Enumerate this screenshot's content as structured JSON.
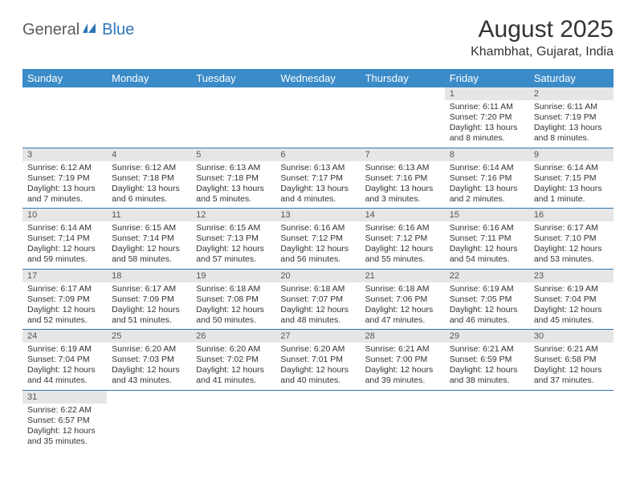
{
  "logo": {
    "part1": "General",
    "part2": "Blue"
  },
  "title": "August 2025",
  "location": "Khambhat, Gujarat, India",
  "colors": {
    "header_bg": "#3b8bc9",
    "header_fg": "#ffffff",
    "daynum_bg": "#e6e6e6",
    "border": "#2e75b6",
    "logo_gray": "#5a5a5a",
    "logo_blue": "#2e75b6"
  },
  "weekdays": [
    "Sunday",
    "Monday",
    "Tuesday",
    "Wednesday",
    "Thursday",
    "Friday",
    "Saturday"
  ],
  "weeks": [
    [
      null,
      null,
      null,
      null,
      null,
      {
        "n": "1",
        "sr": "6:11 AM",
        "ss": "7:20 PM",
        "dl": "13 hours and 8 minutes."
      },
      {
        "n": "2",
        "sr": "6:11 AM",
        "ss": "7:19 PM",
        "dl": "13 hours and 8 minutes."
      }
    ],
    [
      {
        "n": "3",
        "sr": "6:12 AM",
        "ss": "7:19 PM",
        "dl": "13 hours and 7 minutes."
      },
      {
        "n": "4",
        "sr": "6:12 AM",
        "ss": "7:18 PM",
        "dl": "13 hours and 6 minutes."
      },
      {
        "n": "5",
        "sr": "6:13 AM",
        "ss": "7:18 PM",
        "dl": "13 hours and 5 minutes."
      },
      {
        "n": "6",
        "sr": "6:13 AM",
        "ss": "7:17 PM",
        "dl": "13 hours and 4 minutes."
      },
      {
        "n": "7",
        "sr": "6:13 AM",
        "ss": "7:16 PM",
        "dl": "13 hours and 3 minutes."
      },
      {
        "n": "8",
        "sr": "6:14 AM",
        "ss": "7:16 PM",
        "dl": "13 hours and 2 minutes."
      },
      {
        "n": "9",
        "sr": "6:14 AM",
        "ss": "7:15 PM",
        "dl": "13 hours and 1 minute."
      }
    ],
    [
      {
        "n": "10",
        "sr": "6:14 AM",
        "ss": "7:14 PM",
        "dl": "12 hours and 59 minutes."
      },
      {
        "n": "11",
        "sr": "6:15 AM",
        "ss": "7:14 PM",
        "dl": "12 hours and 58 minutes."
      },
      {
        "n": "12",
        "sr": "6:15 AM",
        "ss": "7:13 PM",
        "dl": "12 hours and 57 minutes."
      },
      {
        "n": "13",
        "sr": "6:16 AM",
        "ss": "7:12 PM",
        "dl": "12 hours and 56 minutes."
      },
      {
        "n": "14",
        "sr": "6:16 AM",
        "ss": "7:12 PM",
        "dl": "12 hours and 55 minutes."
      },
      {
        "n": "15",
        "sr": "6:16 AM",
        "ss": "7:11 PM",
        "dl": "12 hours and 54 minutes."
      },
      {
        "n": "16",
        "sr": "6:17 AM",
        "ss": "7:10 PM",
        "dl": "12 hours and 53 minutes."
      }
    ],
    [
      {
        "n": "17",
        "sr": "6:17 AM",
        "ss": "7:09 PM",
        "dl": "12 hours and 52 minutes."
      },
      {
        "n": "18",
        "sr": "6:17 AM",
        "ss": "7:09 PM",
        "dl": "12 hours and 51 minutes."
      },
      {
        "n": "19",
        "sr": "6:18 AM",
        "ss": "7:08 PM",
        "dl": "12 hours and 50 minutes."
      },
      {
        "n": "20",
        "sr": "6:18 AM",
        "ss": "7:07 PM",
        "dl": "12 hours and 48 minutes."
      },
      {
        "n": "21",
        "sr": "6:18 AM",
        "ss": "7:06 PM",
        "dl": "12 hours and 47 minutes."
      },
      {
        "n": "22",
        "sr": "6:19 AM",
        "ss": "7:05 PM",
        "dl": "12 hours and 46 minutes."
      },
      {
        "n": "23",
        "sr": "6:19 AM",
        "ss": "7:04 PM",
        "dl": "12 hours and 45 minutes."
      }
    ],
    [
      {
        "n": "24",
        "sr": "6:19 AM",
        "ss": "7:04 PM",
        "dl": "12 hours and 44 minutes."
      },
      {
        "n": "25",
        "sr": "6:20 AM",
        "ss": "7:03 PM",
        "dl": "12 hours and 43 minutes."
      },
      {
        "n": "26",
        "sr": "6:20 AM",
        "ss": "7:02 PM",
        "dl": "12 hours and 41 minutes."
      },
      {
        "n": "27",
        "sr": "6:20 AM",
        "ss": "7:01 PM",
        "dl": "12 hours and 40 minutes."
      },
      {
        "n": "28",
        "sr": "6:21 AM",
        "ss": "7:00 PM",
        "dl": "12 hours and 39 minutes."
      },
      {
        "n": "29",
        "sr": "6:21 AM",
        "ss": "6:59 PM",
        "dl": "12 hours and 38 minutes."
      },
      {
        "n": "30",
        "sr": "6:21 AM",
        "ss": "6:58 PM",
        "dl": "12 hours and 37 minutes."
      }
    ],
    [
      {
        "n": "31",
        "sr": "6:22 AM",
        "ss": "6:57 PM",
        "dl": "12 hours and 35 minutes."
      },
      null,
      null,
      null,
      null,
      null,
      null
    ]
  ],
  "labels": {
    "sunrise": "Sunrise:",
    "sunset": "Sunset:",
    "daylight": "Daylight:"
  }
}
